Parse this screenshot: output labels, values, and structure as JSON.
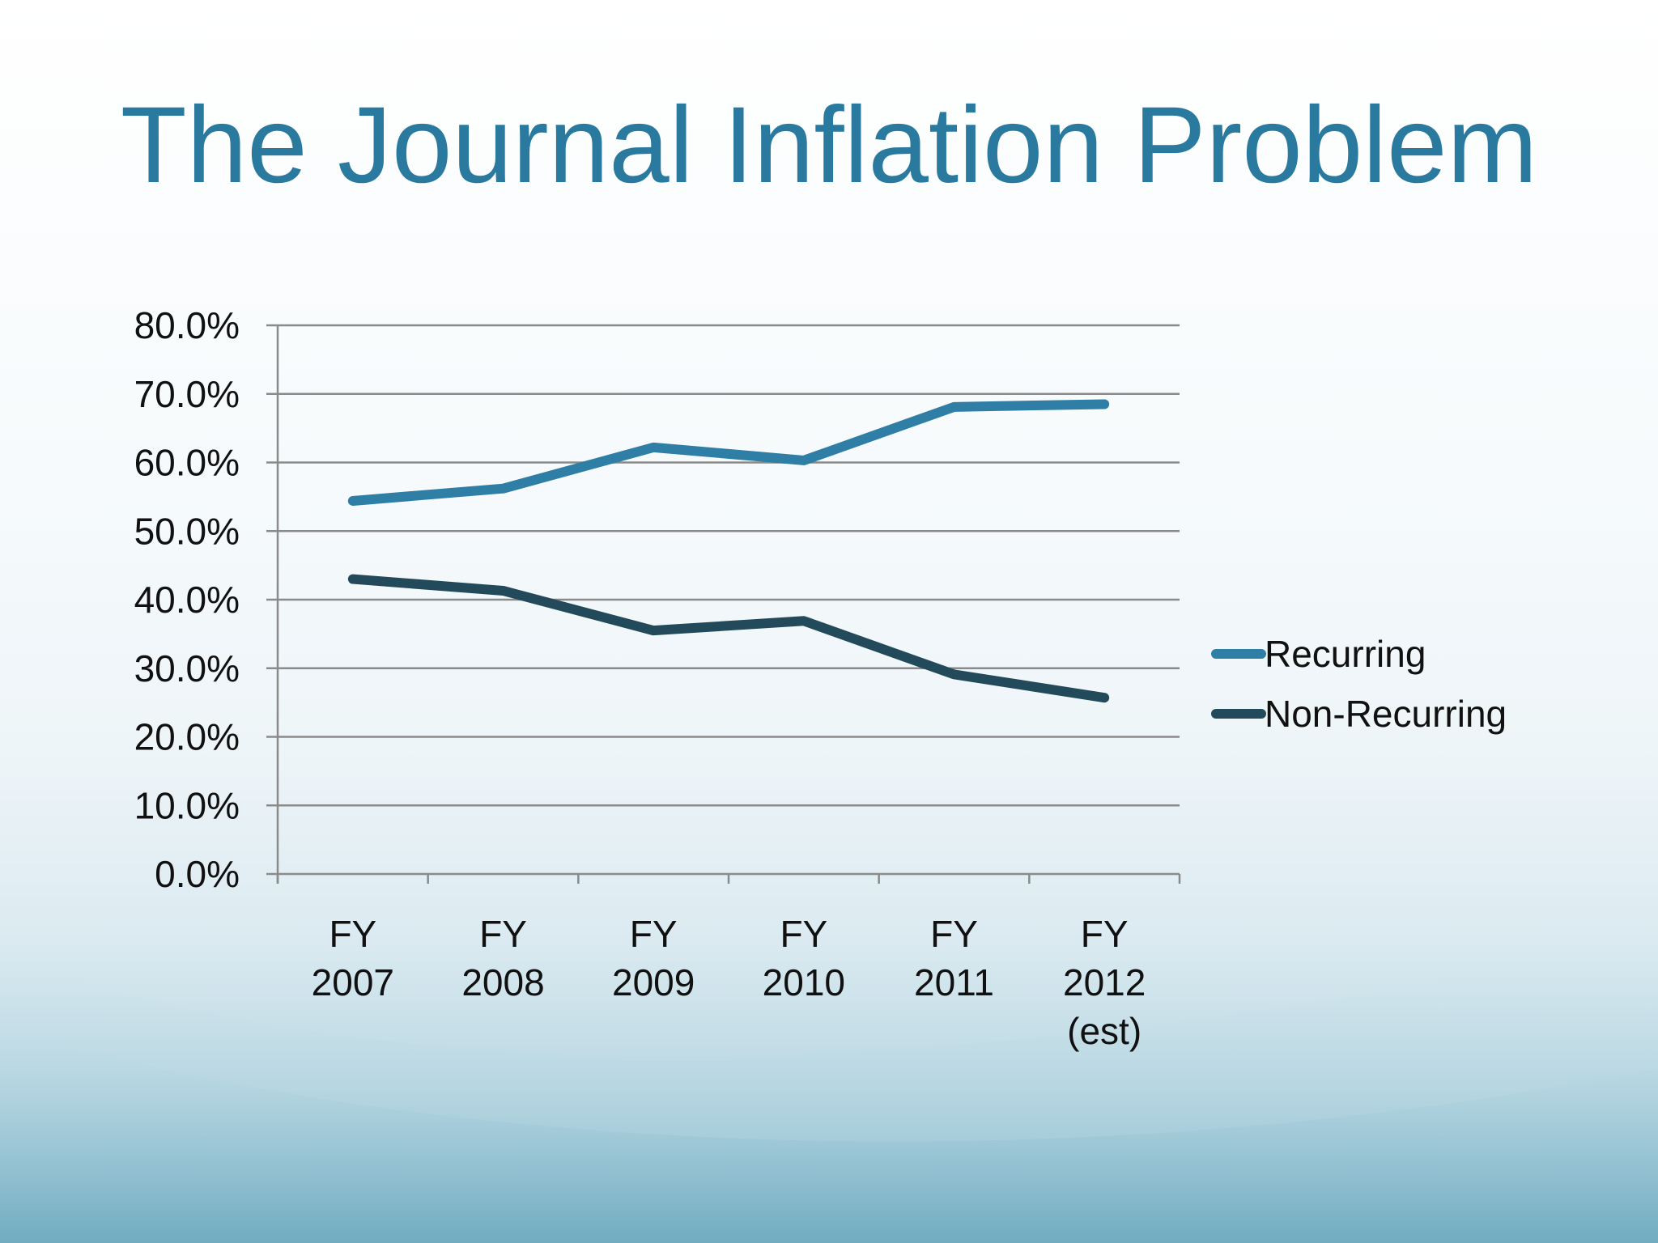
{
  "slide": {
    "title": "The Journal Inflation Problem"
  },
  "colors": {
    "title": "#2a7aa0",
    "recurring": "#2e7ea6",
    "non_recurring": "#234a5a",
    "gridline": "#8a8a8a"
  },
  "chart_data": {
    "type": "line",
    "title": "",
    "xlabel": "",
    "ylabel": "",
    "categories": [
      [
        "FY",
        "2007"
      ],
      [
        "FY",
        "2008"
      ],
      [
        "FY",
        "2009"
      ],
      [
        "FY",
        "2010"
      ],
      [
        "FY",
        "2011"
      ],
      [
        "FY",
        "2012",
        "(est)"
      ]
    ],
    "y_ticks": [
      "0.0%",
      "10.0%",
      "20.0%",
      "30.0%",
      "40.0%",
      "50.0%",
      "60.0%",
      "70.0%",
      "80.0%"
    ],
    "ylim": [
      0,
      80
    ],
    "y_unit": "%",
    "grid": true,
    "legend_position": "right",
    "series": [
      {
        "name": "Recurring",
        "values": [
          54.4,
          56.2,
          62.2,
          60.3,
          68.1,
          68.5
        ]
      },
      {
        "name": "Non-Recurring",
        "values": [
          43.0,
          41.3,
          35.5,
          36.9,
          29.1,
          25.7
        ]
      }
    ]
  }
}
